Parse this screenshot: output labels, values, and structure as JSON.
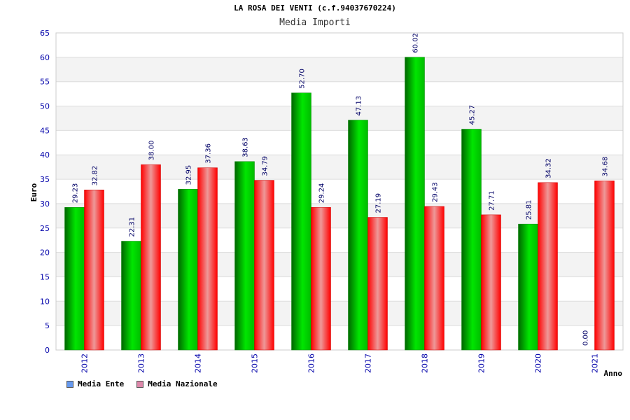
{
  "chart_data": {
    "type": "bar",
    "title": "LA ROSA DEI VENTI (c.f.94037670224)",
    "subtitle": "Media Importi",
    "xlabel": "Anno",
    "ylabel": "Euro",
    "ylim": [
      0,
      65
    ],
    "yticks": [
      "0",
      "5",
      "10",
      "15",
      "20",
      "25",
      "30",
      "35",
      "40",
      "45",
      "50",
      "55",
      "60",
      "65"
    ],
    "categories": [
      "2012",
      "2013",
      "2014",
      "2015",
      "2016",
      "2017",
      "2018",
      "2019",
      "2020",
      "2021"
    ],
    "series": [
      {
        "name": "Media Ente",
        "color": "#00cc00",
        "values": [
          29.23,
          22.31,
          32.95,
          38.63,
          52.7,
          47.13,
          60.02,
          45.27,
          25.81,
          0.0
        ],
        "labels": [
          "29.23",
          "22.31",
          "32.95",
          "38.63",
          "52.70",
          "47.13",
          "60.02",
          "45.27",
          "25.81",
          "0.00"
        ]
      },
      {
        "name": "Media Nazionale",
        "color": "#ff0000",
        "values": [
          32.82,
          38.0,
          37.36,
          34.79,
          29.24,
          27.19,
          29.43,
          27.71,
          34.32,
          34.68
        ],
        "labels": [
          "32.82",
          "38.00",
          "37.36",
          "34.79",
          "29.24",
          "27.19",
          "29.43",
          "27.71",
          "34.32",
          "34.68"
        ]
      }
    ],
    "grid": true,
    "legend_position": "bottom-left"
  },
  "legend": {
    "items": [
      {
        "label": "Media Ente",
        "color": "#6699ee"
      },
      {
        "label": "Media Nazionale",
        "color": "#dd88aa"
      }
    ]
  }
}
